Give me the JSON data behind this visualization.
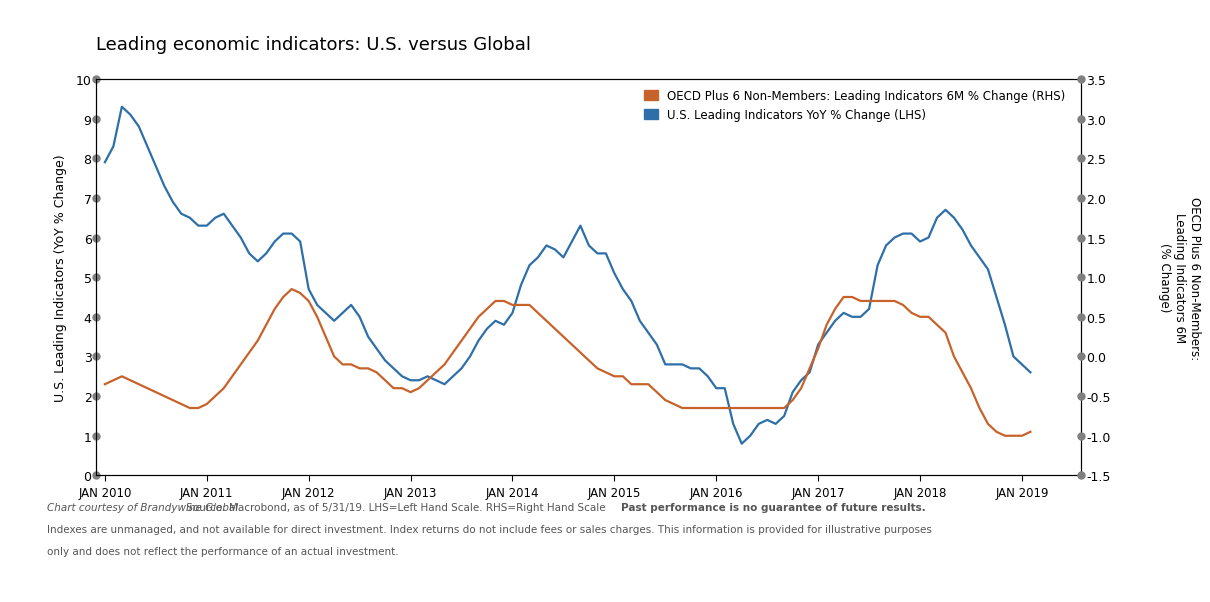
{
  "title": "Leading economic indicators: U.S. versus Global",
  "background_color": "#ffffff",
  "plot_bg_color": "#ffffff",
  "lhs_label": "U.S. Leading Indicators (YoY % Change)",
  "rhs_label": "OECD Plus 6 Non-Members:\nLeading Indicators 6M\n(% Change)",
  "legend_label_oecd": "OECD Plus 6 Non-Members: Leading Indicators 6M % Change (RHS)",
  "legend_label_us": "U.S. Leading Indicators YoY % Change (LHS)",
  "oecd_color": "#C8622B",
  "us_color": "#2E6FA8",
  "lhs_ylim": [
    0,
    10
  ],
  "rhs_ylim": [
    -1.5,
    3.5
  ],
  "lhs_yticks": [
    0,
    1,
    2,
    3,
    4,
    5,
    6,
    7,
    8,
    9,
    10
  ],
  "rhs_yticks": [
    -1.5,
    -1.0,
    -0.5,
    0.0,
    0.5,
    1.0,
    1.5,
    2.0,
    2.5,
    3.0,
    3.5
  ],
  "xtick_labels": [
    "JAN 2010",
    "JAN 2011",
    "JAN 2012",
    "JAN 2013",
    "JAN 2014",
    "JAN 2015",
    "JAN 2016",
    "JAN 2017",
    "JAN 2018",
    "JAN 2019"
  ],
  "xtick_positions": [
    0,
    12,
    24,
    36,
    48,
    60,
    72,
    84,
    96,
    108
  ],
  "footnote_line1": "Chart courtesy of Brandywine Global. Source: Macrobond, as of 5/31/19. LHS=Left Hand Scale. RHS=Right Hand Scale Past performance is no guarantee of future results.",
  "footnote_line2": "Indexes are unmanaged, and not available for direct investment. Index returns do not include fees or sales charges. This information is provided for illustrative purposes",
  "footnote_line3": "only and does not reflect the performance of an actual investment.",
  "footnote_italic": "Chart courtesy of Brandywine Global.",
  "footnote_bold": "Past performance is no guarantee of future results.",
  "us_data": [
    7.9,
    8.3,
    9.3,
    9.1,
    8.8,
    8.3,
    7.8,
    7.3,
    6.9,
    6.6,
    6.5,
    6.3,
    6.3,
    6.5,
    6.6,
    6.3,
    6.0,
    5.6,
    5.4,
    5.6,
    5.9,
    6.1,
    6.1,
    5.9,
    4.7,
    4.3,
    4.1,
    3.9,
    4.1,
    4.3,
    4.0,
    3.5,
    3.2,
    2.9,
    2.7,
    2.5,
    2.4,
    2.4,
    2.5,
    2.4,
    2.3,
    2.5,
    2.7,
    3.0,
    3.4,
    3.7,
    3.9,
    3.8,
    4.1,
    4.8,
    5.3,
    5.5,
    5.8,
    5.7,
    5.5,
    5.9,
    6.3,
    5.8,
    5.6,
    5.6,
    5.1,
    4.7,
    4.4,
    3.9,
    3.6,
    3.3,
    2.8,
    2.8,
    2.8,
    2.7,
    2.7,
    2.5,
    2.2,
    2.2,
    1.3,
    0.8,
    1.0,
    1.3,
    1.4,
    1.3,
    1.5,
    2.1,
    2.4,
    2.6,
    3.3,
    3.6,
    3.9,
    4.1,
    4.0,
    4.0,
    4.2,
    5.3,
    5.8,
    6.0,
    6.1,
    6.1,
    5.9,
    6.0,
    6.5,
    6.7,
    6.5,
    6.2,
    5.8,
    5.5,
    5.2,
    4.5,
    3.8,
    3.0,
    2.8,
    2.6
  ],
  "oecd_data": [
    -0.35,
    -0.3,
    -0.25,
    -0.3,
    -0.35,
    -0.4,
    -0.45,
    -0.5,
    -0.55,
    -0.6,
    -0.65,
    -0.65,
    -0.6,
    -0.5,
    -0.4,
    -0.25,
    -0.1,
    0.05,
    0.2,
    0.4,
    0.6,
    0.75,
    0.85,
    0.8,
    0.7,
    0.5,
    0.25,
    0.0,
    -0.1,
    -0.1,
    -0.15,
    -0.15,
    -0.2,
    -0.3,
    -0.4,
    -0.4,
    -0.45,
    -0.4,
    -0.3,
    -0.2,
    -0.1,
    0.05,
    0.2,
    0.35,
    0.5,
    0.6,
    0.7,
    0.7,
    0.65,
    0.65,
    0.65,
    0.55,
    0.45,
    0.35,
    0.25,
    0.15,
    0.05,
    -0.05,
    -0.15,
    -0.2,
    -0.25,
    -0.25,
    -0.35,
    -0.35,
    -0.35,
    -0.45,
    -0.55,
    -0.6,
    -0.65,
    -0.65,
    -0.65,
    -0.65,
    -0.65,
    -0.65,
    -0.65,
    -0.65,
    -0.65,
    -0.65,
    -0.65,
    -0.65,
    -0.65,
    -0.55,
    -0.4,
    -0.15,
    0.1,
    0.4,
    0.6,
    0.75,
    0.75,
    0.7,
    0.7,
    0.7,
    0.7,
    0.7,
    0.65,
    0.55,
    0.5,
    0.5,
    0.4,
    0.3,
    0.0,
    -0.2,
    -0.4,
    -0.65,
    -0.85,
    -0.95,
    -1.0,
    -1.0,
    -1.0,
    -0.95
  ]
}
